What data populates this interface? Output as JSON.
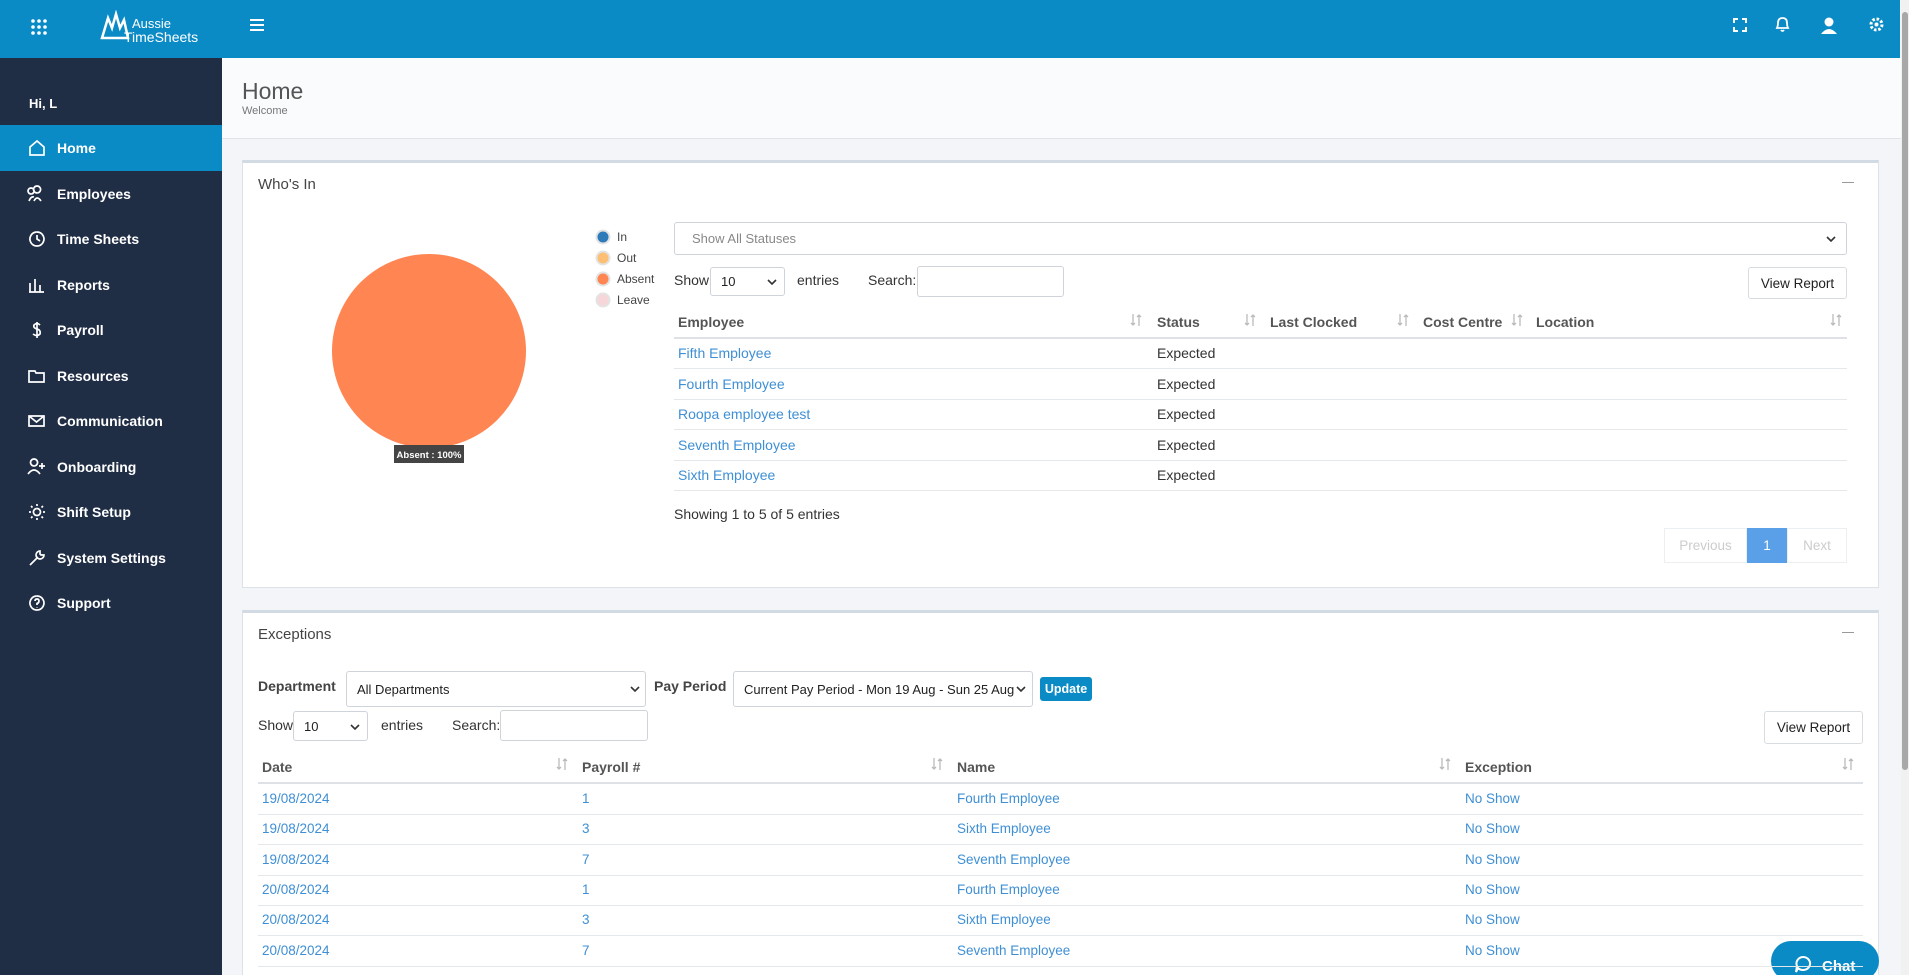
{
  "topbar": {
    "logo_line1": "Aussie",
    "logo_line2": "TimeSheets"
  },
  "sidebar": {
    "greeting": "Hi, L",
    "items": [
      "Home",
      "Employees",
      "Time Sheets",
      "Reports",
      "Payroll",
      "Resources",
      "Communication",
      "Onboarding",
      "Shift Setup",
      "System Settings",
      "Support"
    ]
  },
  "page": {
    "title": "Home",
    "subtitle": "Welcome"
  },
  "whos_in": {
    "title": "Who's In",
    "chart": {
      "type": "pie",
      "categories": [
        "In",
        "Out",
        "Absent",
        "Leave"
      ],
      "colors": [
        "#2f7ab8",
        "#fdbf74",
        "#ff8552",
        "#f7d6da"
      ],
      "values": [
        0,
        0,
        100,
        0
      ],
      "tooltip": "Absent : 100%"
    },
    "filter": "Show All Statuses",
    "show": "Show",
    "page_size": "10",
    "entries": "entries",
    "search": "Search:",
    "view_report": "View Report",
    "columns": [
      "Employee",
      "Status",
      "Last Clocked",
      "Cost Centre",
      "Location"
    ],
    "rows": [
      [
        "Fifth Employee",
        "Expected"
      ],
      [
        "Fourth Employee",
        "Expected"
      ],
      [
        "Roopa employee test",
        "Expected"
      ],
      [
        "Seventh Employee",
        "Expected"
      ],
      [
        "Sixth Employee",
        "Expected"
      ]
    ],
    "info": "Showing 1 to 5 of 5 entries",
    "pagination": [
      "Previous",
      "1",
      "Next"
    ]
  },
  "exceptions": {
    "title": "Exceptions",
    "department_label": "Department",
    "department": "All Departments",
    "pay_period_label": "Pay Period",
    "pay_period": "Current Pay Period - Mon 19 Aug - Sun 25 Aug",
    "update": "Update",
    "show": "Show",
    "page_size": "10",
    "entries": "entries",
    "search": "Search:",
    "view_report": "View Report",
    "columns": [
      "Date",
      "Payroll #",
      "Name",
      "Exception"
    ],
    "rows": [
      [
        "19/08/2024",
        "1",
        "Fourth Employee",
        "No Show"
      ],
      [
        "19/08/2024",
        "3",
        "Sixth Employee",
        "No Show"
      ],
      [
        "19/08/2024",
        "7",
        "Seventh Employee",
        "No Show"
      ],
      [
        "20/08/2024",
        "1",
        "Fourth Employee",
        "No Show"
      ],
      [
        "20/08/2024",
        "3",
        "Sixth Employee",
        "No Show"
      ],
      [
        "20/08/2024",
        "7",
        "Seventh Employee",
        "No Show"
      ]
    ]
  },
  "chat": "Chat"
}
